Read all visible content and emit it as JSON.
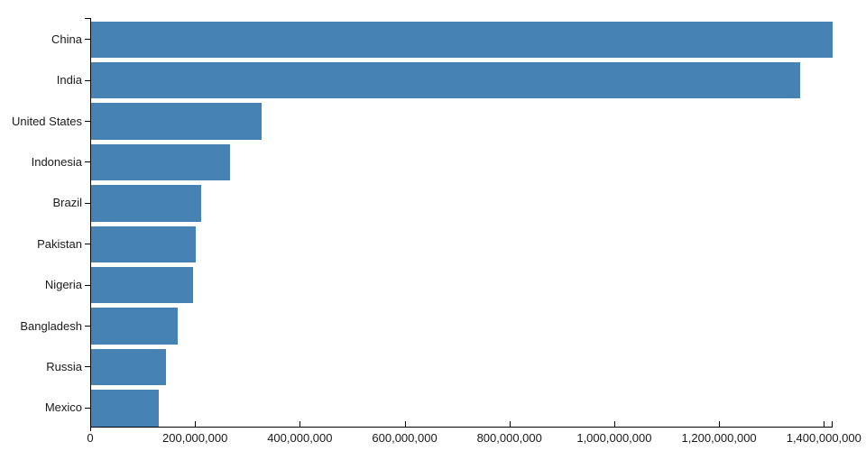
{
  "chart_data": {
    "type": "bar",
    "orientation": "horizontal",
    "title": "",
    "categories": [
      "China",
      "India",
      "United States",
      "Indonesia",
      "Brazil",
      "Pakistan",
      "Nigeria",
      "Bangladesh",
      "Russia",
      "Mexico"
    ],
    "values": [
      1415045928,
      1354051854,
      326766748,
      266794980,
      210867954,
      200813818,
      195875237,
      166368149,
      143964709,
      130759074
    ],
    "xlabel": "",
    "ylabel": "",
    "xlim": [
      0,
      1415045928
    ],
    "x_axis": {
      "tick_values": [
        0,
        200000000,
        400000000,
        600000000,
        800000000,
        1000000000,
        1200000000,
        1400000000
      ],
      "tick_labels": [
        "0",
        "200,000,000",
        "400,000,000",
        "600,000,000",
        "800,000,000",
        "1,000,000,000",
        "1,200,000,000",
        "1,400,000,000"
      ]
    },
    "grid": false,
    "legend": false,
    "colors": {
      "bar": "#4682b4",
      "axis": "#000000",
      "text": "#1a1a1a",
      "background": "#ffffff"
    }
  }
}
